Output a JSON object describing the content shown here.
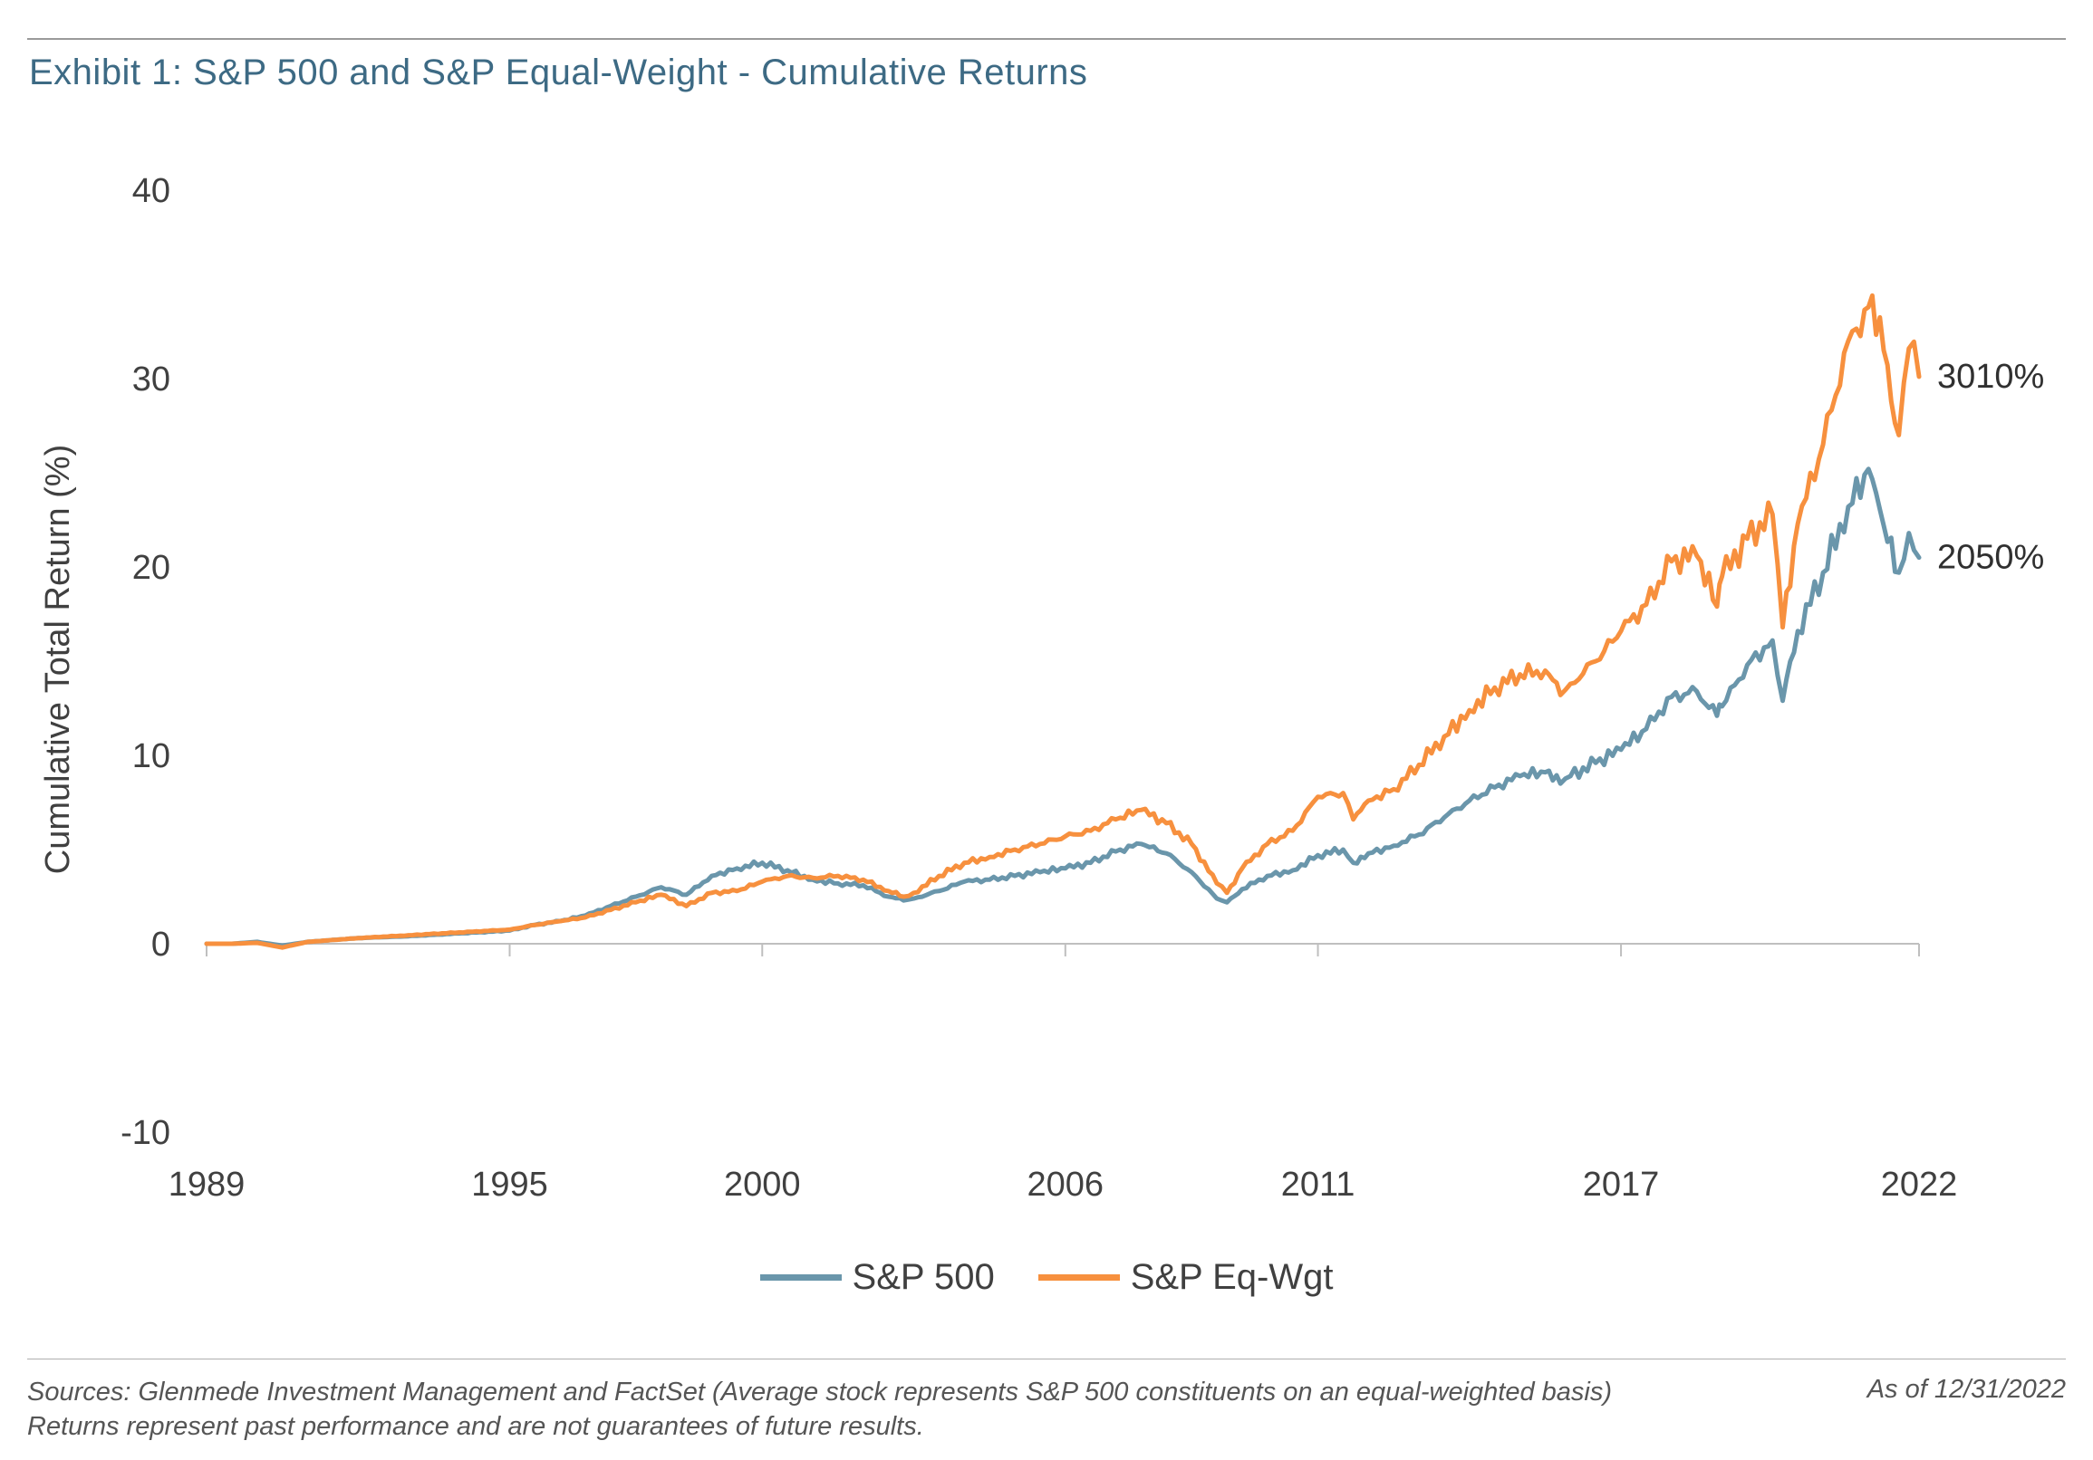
{
  "header": {
    "title": "Exhibit 1: S&P 500 and S&P Equal-Weight - Cumulative Returns"
  },
  "footer": {
    "source_line1": "Sources: Glenmede Investment Management and FactSet (Average stock represents S&P 500 constituents on an equal-weighted basis)",
    "source_line2": "Returns represent past performance and are not guarantees of future results.",
    "as_of": "As of 12/31/2022"
  },
  "colors": {
    "sp500": "#6a96ab",
    "eqwgt": "#f7903e",
    "axis": "#bfbfbf"
  },
  "chart_data": {
    "type": "line",
    "ylabel": "Cumulative Total Return (%)",
    "xlabel": "",
    "ylim": [
      -10,
      40
    ],
    "yticks": [
      -10,
      0,
      10,
      20,
      30,
      40
    ],
    "xlim": [
      1989,
      2023
    ],
    "xticks": [
      1989,
      1995,
      2000,
      2006,
      2011,
      2017,
      2022
    ],
    "grid": false,
    "legend_position": "bottom",
    "series": [
      {
        "name": "S&P 500",
        "end_label": "2050%",
        "points": [
          [
            1989.0,
            0.0
          ],
          [
            1989.5,
            0.0
          ],
          [
            1990.0,
            0.1
          ],
          [
            1990.5,
            -0.1
          ],
          [
            1991.0,
            0.1
          ],
          [
            1992.0,
            0.3
          ],
          [
            1993.0,
            0.4
          ],
          [
            1994.0,
            0.55
          ],
          [
            1995.0,
            0.7
          ],
          [
            1995.5,
            1.0
          ],
          [
            1996.0,
            1.2
          ],
          [
            1996.5,
            1.5
          ],
          [
            1997.0,
            2.0
          ],
          [
            1997.5,
            2.5
          ],
          [
            1998.0,
            3.0
          ],
          [
            1998.5,
            2.6
          ],
          [
            1999.0,
            3.6
          ],
          [
            1999.5,
            4.0
          ],
          [
            2000.0,
            4.3
          ],
          [
            2000.5,
            3.9
          ],
          [
            2001.0,
            3.4
          ],
          [
            2001.5,
            3.2
          ],
          [
            2002.0,
            3.1
          ],
          [
            2002.5,
            2.5
          ],
          [
            2002.8,
            2.3
          ],
          [
            2003.0,
            2.4
          ],
          [
            2003.5,
            2.8
          ],
          [
            2004.0,
            3.3
          ],
          [
            2004.5,
            3.4
          ],
          [
            2005.0,
            3.6
          ],
          [
            2005.5,
            3.8
          ],
          [
            2006.0,
            4.0
          ],
          [
            2006.5,
            4.3
          ],
          [
            2007.0,
            4.9
          ],
          [
            2007.5,
            5.3
          ],
          [
            2008.0,
            4.8
          ],
          [
            2008.5,
            3.8
          ],
          [
            2009.0,
            2.4
          ],
          [
            2009.2,
            2.2
          ],
          [
            2009.5,
            2.9
          ],
          [
            2010.0,
            3.6
          ],
          [
            2010.5,
            3.9
          ],
          [
            2011.0,
            4.7
          ],
          [
            2011.5,
            5.0
          ],
          [
            2011.7,
            4.3
          ],
          [
            2012.0,
            4.8
          ],
          [
            2012.5,
            5.2
          ],
          [
            2013.0,
            5.8
          ],
          [
            2013.5,
            6.7
          ],
          [
            2014.0,
            7.6
          ],
          [
            2014.5,
            8.3
          ],
          [
            2015.0,
            8.9
          ],
          [
            2015.5,
            9.1
          ],
          [
            2015.8,
            8.5
          ],
          [
            2016.0,
            8.9
          ],
          [
            2016.5,
            9.6
          ],
          [
            2017.0,
            10.3
          ],
          [
            2017.5,
            11.4
          ],
          [
            2018.0,
            13.1
          ],
          [
            2018.5,
            13.4
          ],
          [
            2018.9,
            12.1
          ],
          [
            2019.0,
            12.6
          ],
          [
            2019.5,
            14.8
          ],
          [
            2020.0,
            16.1
          ],
          [
            2020.2,
            12.9
          ],
          [
            2020.5,
            16.6
          ],
          [
            2021.0,
            19.7
          ],
          [
            2021.5,
            23.2
          ],
          [
            2021.9,
            25.2
          ],
          [
            2022.2,
            22.2
          ],
          [
            2022.5,
            19.7
          ],
          [
            2022.7,
            21.8
          ],
          [
            2022.9,
            20.5
          ]
        ]
      },
      {
        "name": "S&P Eq-Wgt",
        "end_label": "3010%",
        "points": [
          [
            1989.0,
            0.0
          ],
          [
            1989.5,
            0.0
          ],
          [
            1990.0,
            0.05
          ],
          [
            1990.5,
            -0.2
          ],
          [
            1991.0,
            0.1
          ],
          [
            1992.0,
            0.3
          ],
          [
            1993.0,
            0.45
          ],
          [
            1994.0,
            0.6
          ],
          [
            1995.0,
            0.75
          ],
          [
            1995.5,
            1.0
          ],
          [
            1996.0,
            1.2
          ],
          [
            1996.5,
            1.4
          ],
          [
            1997.0,
            1.8
          ],
          [
            1997.5,
            2.2
          ],
          [
            1998.0,
            2.6
          ],
          [
            1998.5,
            2.0
          ],
          [
            1999.0,
            2.7
          ],
          [
            1999.5,
            2.8
          ],
          [
            2000.0,
            3.3
          ],
          [
            2000.5,
            3.6
          ],
          [
            2001.0,
            3.5
          ],
          [
            2001.5,
            3.6
          ],
          [
            2002.0,
            3.4
          ],
          [
            2002.5,
            2.8
          ],
          [
            2002.8,
            2.5
          ],
          [
            2003.0,
            2.7
          ],
          [
            2003.5,
            3.6
          ],
          [
            2004.0,
            4.3
          ],
          [
            2004.5,
            4.6
          ],
          [
            2005.0,
            5.0
          ],
          [
            2005.5,
            5.3
          ],
          [
            2006.0,
            5.7
          ],
          [
            2006.5,
            6.0
          ],
          [
            2007.0,
            6.6
          ],
          [
            2007.5,
            7.1
          ],
          [
            2008.0,
            6.4
          ],
          [
            2008.5,
            5.3
          ],
          [
            2009.0,
            3.2
          ],
          [
            2009.2,
            2.7
          ],
          [
            2009.5,
            4.0
          ],
          [
            2010.0,
            5.3
          ],
          [
            2010.5,
            6.0
          ],
          [
            2011.0,
            7.8
          ],
          [
            2011.5,
            8.0
          ],
          [
            2011.7,
            6.6
          ],
          [
            2012.0,
            7.6
          ],
          [
            2012.5,
            8.2
          ],
          [
            2013.0,
            9.5
          ],
          [
            2013.5,
            11.0
          ],
          [
            2014.0,
            12.4
          ],
          [
            2014.5,
            13.6
          ],
          [
            2015.0,
            14.3
          ],
          [
            2015.5,
            14.5
          ],
          [
            2015.8,
            13.2
          ],
          [
            2016.0,
            13.8
          ],
          [
            2016.5,
            15.0
          ],
          [
            2017.0,
            16.6
          ],
          [
            2017.5,
            18.0
          ],
          [
            2018.0,
            20.3
          ],
          [
            2018.5,
            20.6
          ],
          [
            2018.9,
            17.9
          ],
          [
            2019.0,
            19.5
          ],
          [
            2019.5,
            21.5
          ],
          [
            2020.0,
            22.8
          ],
          [
            2020.2,
            16.8
          ],
          [
            2020.5,
            22.3
          ],
          [
            2021.0,
            26.5
          ],
          [
            2021.5,
            32.0
          ],
          [
            2021.9,
            33.8
          ],
          [
            2022.2,
            31.5
          ],
          [
            2022.5,
            27.0
          ],
          [
            2022.7,
            31.6
          ],
          [
            2022.9,
            30.1
          ]
        ]
      }
    ]
  }
}
